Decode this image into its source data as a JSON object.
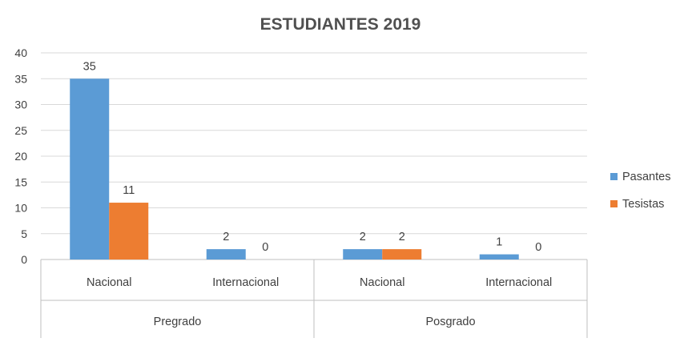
{
  "chart_data": {
    "type": "bar",
    "title": "ESTUDIANTES 2019",
    "xlabel": "",
    "ylabel": "",
    "ylim": [
      0,
      40
    ],
    "yticks": [
      0,
      5,
      10,
      15,
      20,
      25,
      30,
      35,
      40
    ],
    "grid": true,
    "legend_position": "right",
    "groups": [
      "Pregrado",
      "Posgrado"
    ],
    "categories": [
      "Nacional",
      "Internacional",
      "Nacional",
      "Internacional"
    ],
    "category_group": [
      0,
      0,
      1,
      1
    ],
    "series": [
      {
        "name": "Pasantes",
        "color": "#5B9BD5",
        "values": [
          35,
          2,
          2,
          1
        ]
      },
      {
        "name": "Tesistas",
        "color": "#ED7D31",
        "values": [
          11,
          0,
          2,
          0
        ]
      }
    ]
  }
}
